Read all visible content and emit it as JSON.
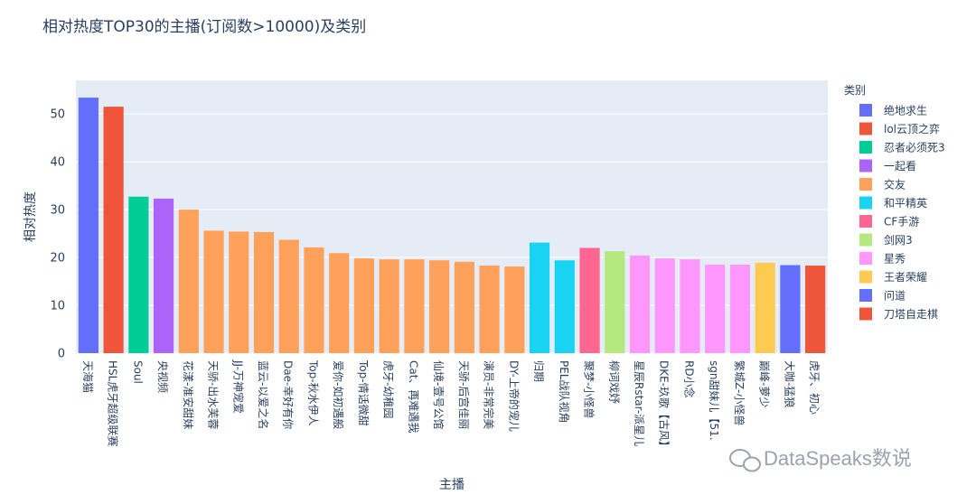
{
  "chart_data": {
    "type": "bar",
    "title": "相对热度TOP30的主播(订阅数>10000)及类别",
    "xlabel": "主播",
    "ylabel": "相对热度",
    "ylim": [
      0,
      57
    ],
    "yticks": [
      0,
      10,
      20,
      30,
      40,
      50
    ],
    "grid": true,
    "legend_position": "right",
    "legend_title": "类别",
    "categories": [
      "天海猫",
      "HSL虎牙超级联赛",
      "Soul",
      "央视频",
      "花漾-准安甜妹",
      "天骄-出水芙蓉",
      "JJ-万神宠爱",
      "蓝云-以爱之名",
      "Dae-幸好有你",
      "Top-秋水伊人",
      "爱你-如初遇般",
      "Top-情话微甜",
      "虎牙-幼稚园",
      "Cat、再难遇我",
      "仙境-壹号公馆",
      "天骄-后宫佳丽",
      "演员-非常完美",
      "DY-上帝的宠儿",
      "归期",
      "PEL战队视角",
      "聚梦-小怪兽",
      "柳词戏妤",
      "星辰Rstar-派星儿",
      "DKE-玖歌【古风】",
      "RD小念",
      "sgn甜妹儿【51.",
      "繁城Z-小怪兽",
      "巅峰-萝少",
      "大咖-猛狼",
      "虎牙、初心"
    ],
    "values": [
      53.4,
      51.5,
      32.7,
      32.3,
      30.0,
      25.6,
      25.4,
      25.3,
      23.7,
      22.1,
      20.9,
      19.8,
      19.6,
      19.6,
      19.4,
      19.1,
      18.3,
      18.1,
      23.1,
      19.4,
      22.0,
      21.3,
      20.4,
      19.8,
      19.6,
      18.5,
      18.5,
      18.9,
      18.4,
      18.3
    ],
    "category_type": [
      "绝地求生",
      "lol云顶之弈",
      "忍者必须死3",
      "一起看",
      "交友",
      "交友",
      "交友",
      "交友",
      "交友",
      "交友",
      "交友",
      "交友",
      "交友",
      "交友",
      "交友",
      "交友",
      "交友",
      "交友",
      "和平精英",
      "和平精英",
      "CF手游",
      "剑网3",
      "星秀",
      "星秀",
      "星秀",
      "星秀",
      "星秀",
      "王者荣耀",
      "问道",
      "刀塔自走棋"
    ],
    "series": [
      {
        "name": "绝地求生",
        "color": "#636efa"
      },
      {
        "name": "lol云顶之弈",
        "color": "#ef553b"
      },
      {
        "name": "忍者必须死3",
        "color": "#00cc96"
      },
      {
        "name": "一起看",
        "color": "#ab63fa"
      },
      {
        "name": "交友",
        "color": "#ffa15a"
      },
      {
        "name": "和平精英",
        "color": "#19d3f3"
      },
      {
        "name": "CF手游",
        "color": "#ff6692"
      },
      {
        "name": "剑网3",
        "color": "#b6e880"
      },
      {
        "name": "星秀",
        "color": "#ff97ff"
      },
      {
        "name": "王者荣耀",
        "color": "#fecb52"
      },
      {
        "name": "问道",
        "color": "#636efa"
      },
      {
        "name": "刀塔自走棋",
        "color": "#ef553b"
      }
    ]
  },
  "watermark": {
    "text": "DataSpeaks数说"
  }
}
